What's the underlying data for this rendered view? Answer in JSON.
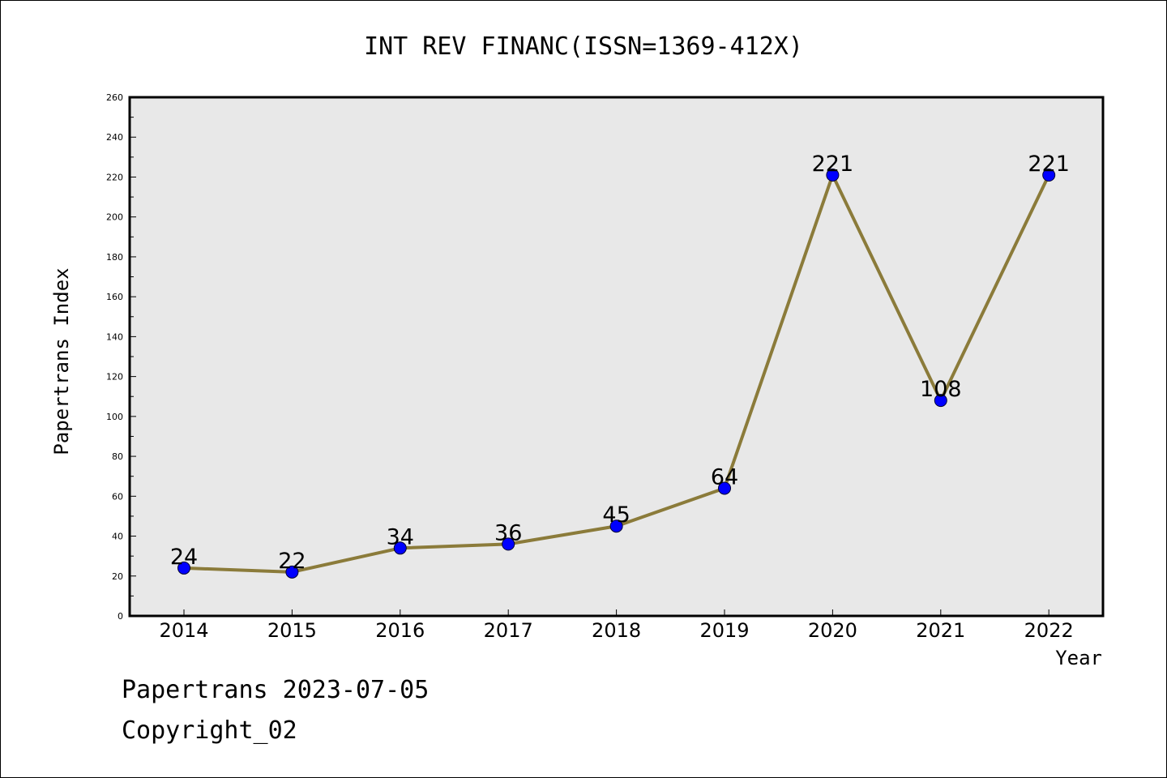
{
  "chart_data": {
    "type": "line",
    "title": "INT REV FINANC(ISSN=1369-412X)",
    "xlabel": "Year",
    "ylabel": "Papertrans Index",
    "categories": [
      "2014",
      "2015",
      "2016",
      "2017",
      "2018",
      "2019",
      "2020",
      "2021",
      "2022"
    ],
    "values": [
      24,
      22,
      34,
      36,
      45,
      64,
      221,
      108,
      221
    ],
    "data_labels": [
      "24",
      "22",
      "34",
      "36",
      "45",
      "64",
      "221",
      "108",
      "221"
    ],
    "ylim": [
      0,
      260
    ],
    "y_ticks": [
      "0",
      "20",
      "40",
      "60",
      "80",
      "100",
      "120",
      "140",
      "160",
      "180",
      "200",
      "220",
      "240",
      "260"
    ],
    "grid": false,
    "legend": "none",
    "colors": {
      "line": "#8B7B3A",
      "marker": "#0000FF",
      "plot_background": "#E8E8E8"
    }
  },
  "footer": {
    "line1": "Papertrans 2023-07-05",
    "line2": "Copyright_02"
  }
}
